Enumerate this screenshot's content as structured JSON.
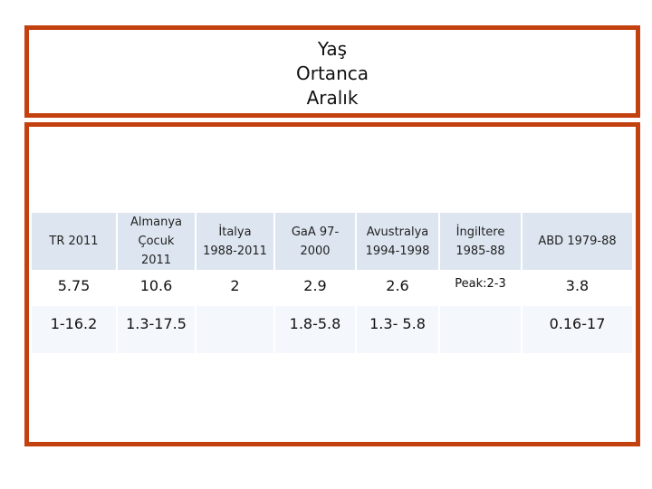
{
  "header": {
    "title": [
      "Yaş",
      "Ortanca",
      "Aralık"
    ]
  },
  "table": {
    "columns": [
      "TR 2011",
      "Almanya Çocuk 2011",
      "İtalya 1988-2011",
      "GaA 97-2000",
      "Avustralya 1994-1998",
      "İngiltere 1985-88",
      "ABD 1979-88"
    ],
    "rows": [
      [
        "5.75",
        "10.6",
        "2",
        "2.9",
        "2.6",
        "Peak:2-3",
        "3.8"
      ],
      [
        "1-16.2",
        "1.3-17.5",
        null,
        "1.8-5.8",
        "1.3- 5.8",
        null,
        "0.16-17"
      ]
    ]
  }
}
